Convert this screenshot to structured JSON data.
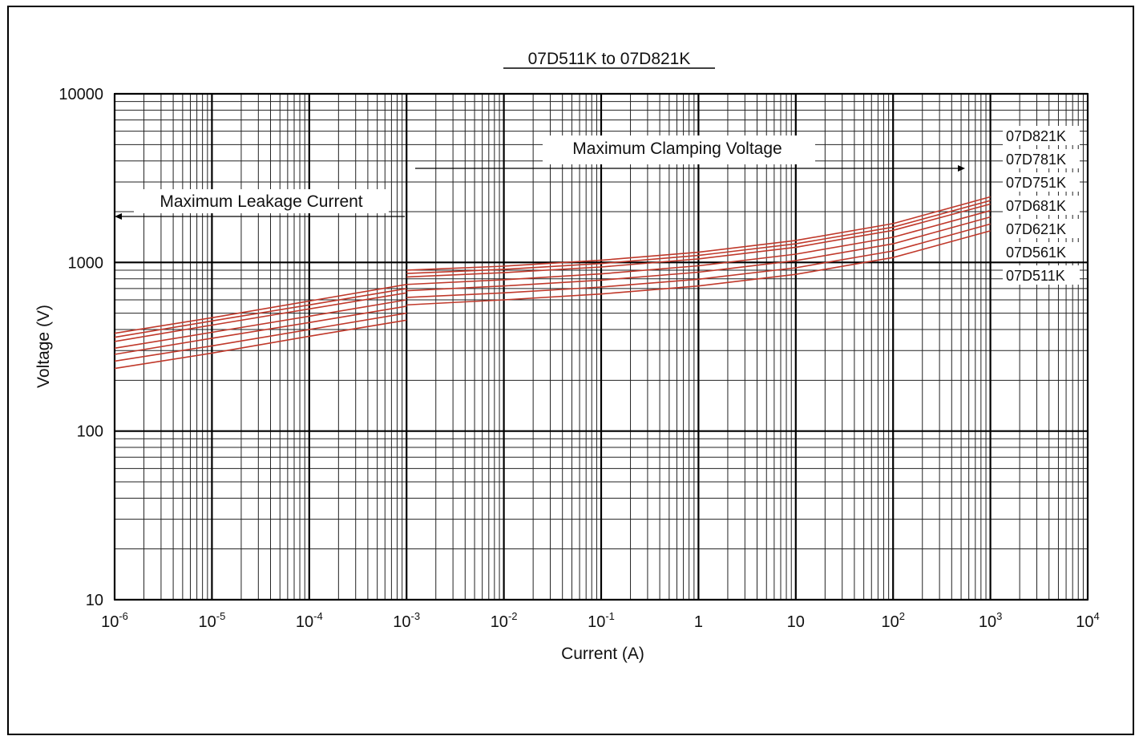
{
  "chart_data": {
    "type": "line",
    "title": "07D511K to 07D821K",
    "xlabel": "Current (A)",
    "ylabel": "Voltage (V)",
    "x_scale": "log",
    "y_scale": "log",
    "xlim": [
      1e-06,
      10000
    ],
    "ylim": [
      10,
      10000
    ],
    "grid": true,
    "x_ticks": [
      {
        "base": "10",
        "exp": "-6"
      },
      {
        "base": "10",
        "exp": "-5"
      },
      {
        "base": "10",
        "exp": "-4"
      },
      {
        "base": "10",
        "exp": "-3"
      },
      {
        "base": "10",
        "exp": "-2"
      },
      {
        "base": "10",
        "exp": "-1"
      },
      {
        "base": "1",
        "exp": ""
      },
      {
        "base": "10",
        "exp": ""
      },
      {
        "base": "10",
        "exp": "2"
      },
      {
        "base": "10",
        "exp": "3"
      },
      {
        "base": "10",
        "exp": "4"
      }
    ],
    "y_ticks": [
      "10",
      "100",
      "1000",
      "10000"
    ],
    "annotations": [
      {
        "text": "Maximum Leakage Current",
        "direction": "left"
      },
      {
        "text": "Maximum Clamping Voltage",
        "direction": "right"
      }
    ],
    "series_color": "#c0392b",
    "series": [
      {
        "name": "07D821K",
        "leakage": {
          "x": [
            1e-06,
            1e-05,
            0.0001,
            0.001
          ],
          "y": [
            380,
            470,
            590,
            740
          ]
        },
        "clamping": {
          "x": [
            0.001,
            0.01,
            0.1,
            1,
            10,
            100,
            1000
          ],
          "y": [
            900,
            950,
            1030,
            1150,
            1350,
            1700,
            2450
          ]
        }
      },
      {
        "name": "07D781K",
        "leakage": {
          "x": [
            1e-06,
            1e-05,
            0.0001,
            0.001
          ],
          "y": [
            360,
            450,
            560,
            700
          ]
        },
        "clamping": {
          "x": [
            0.001,
            0.01,
            0.1,
            1,
            10,
            100,
            1000
          ],
          "y": [
            860,
            910,
            985,
            1100,
            1290,
            1620,
            2330
          ]
        }
      },
      {
        "name": "07D751K",
        "leakage": {
          "x": [
            1e-06,
            1e-05,
            0.0001,
            0.001
          ],
          "y": [
            340,
            425,
            530,
            660
          ]
        },
        "clamping": {
          "x": [
            0.001,
            0.01,
            0.1,
            1,
            10,
            100,
            1000
          ],
          "y": [
            820,
            870,
            940,
            1050,
            1230,
            1550,
            2220
          ]
        }
      },
      {
        "name": "07D681K",
        "leakage": {
          "x": [
            1e-06,
            1e-05,
            0.0001,
            0.001
          ],
          "y": [
            310,
            385,
            480,
            600
          ]
        },
        "clamping": {
          "x": [
            0.001,
            0.01,
            0.1,
            1,
            10,
            100,
            1000
          ],
          "y": [
            740,
            790,
            855,
            955,
            1120,
            1410,
            2030
          ]
        }
      },
      {
        "name": "07D621K",
        "leakage": {
          "x": [
            1e-06,
            1e-05,
            0.0001,
            0.001
          ],
          "y": [
            285,
            355,
            440,
            550
          ]
        },
        "clamping": {
          "x": [
            0.001,
            0.01,
            0.1,
            1,
            10,
            100,
            1000
          ],
          "y": [
            680,
            725,
            785,
            875,
            1025,
            1290,
            1860
          ]
        }
      },
      {
        "name": "07D561K",
        "leakage": {
          "x": [
            1e-06,
            1e-05,
            0.0001,
            0.001
          ],
          "y": [
            260,
            320,
            400,
            500
          ]
        },
        "clamping": {
          "x": [
            0.001,
            0.01,
            0.1,
            1,
            10,
            100,
            1000
          ],
          "y": [
            620,
            660,
            715,
            795,
            930,
            1170,
            1690
          ]
        }
      },
      {
        "name": "07D511K",
        "leakage": {
          "x": [
            1e-06,
            1e-05,
            0.0001,
            0.001
          ],
          "y": [
            235,
            290,
            365,
            455
          ]
        },
        "clamping": {
          "x": [
            0.001,
            0.01,
            0.1,
            1,
            10,
            100,
            1000
          ],
          "y": [
            560,
            600,
            650,
            725,
            850,
            1070,
            1540
          ]
        }
      }
    ]
  }
}
